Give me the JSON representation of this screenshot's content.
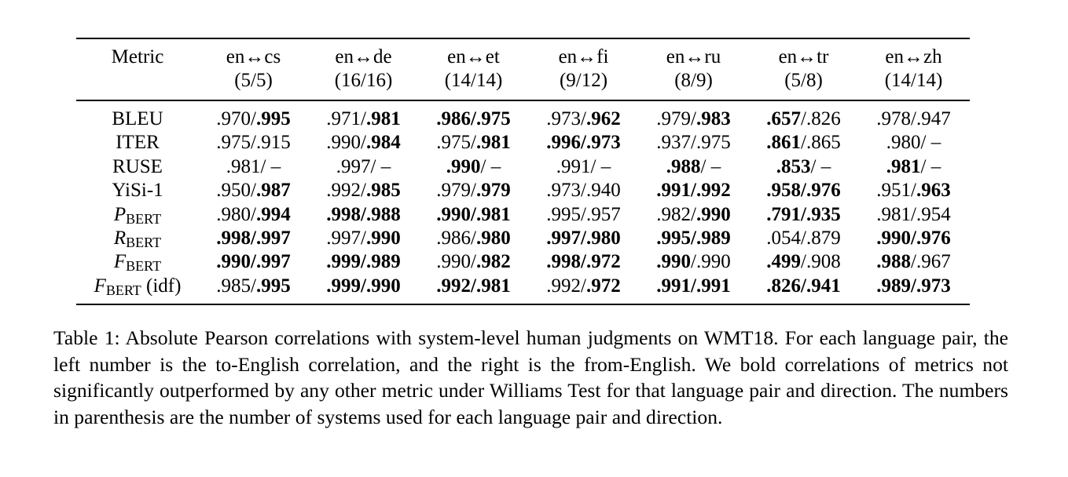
{
  "table": {
    "header": {
      "metric_label": "Metric",
      "pairs": [
        {
          "name": "en↔cs",
          "count": "(5/5)"
        },
        {
          "name": "en↔de",
          "count": "(16/16)"
        },
        {
          "name": "en↔et",
          "count": "(14/14)"
        },
        {
          "name": "en↔fi",
          "count": "(9/12)"
        },
        {
          "name": "en↔ru",
          "count": "(8/9)"
        },
        {
          "name": "en↔tr",
          "count": "(5/8)"
        },
        {
          "name": "en↔zh",
          "count": "(14/14)"
        }
      ]
    },
    "rows": [
      {
        "metric": "BLEU",
        "cells": [
          {
            "left": ".970",
            "right": ".995",
            "left_bold": false,
            "right_bold": true
          },
          {
            "left": ".971",
            "right": ".981",
            "left_bold": false,
            "right_bold": true
          },
          {
            "left": ".986",
            "right": ".975",
            "left_bold": true,
            "right_bold": true
          },
          {
            "left": ".973",
            "right": ".962",
            "left_bold": false,
            "right_bold": true
          },
          {
            "left": ".979",
            "right": ".983",
            "left_bold": false,
            "right_bold": true
          },
          {
            "left": ".657",
            "right": ".826",
            "left_bold": true,
            "right_bold": false
          },
          {
            "left": ".978",
            "right": ".947",
            "left_bold": false,
            "right_bold": false
          }
        ]
      },
      {
        "metric": "ITER",
        "cells": [
          {
            "left": ".975",
            "right": ".915",
            "left_bold": false,
            "right_bold": false
          },
          {
            "left": ".990",
            "right": ".984",
            "left_bold": false,
            "right_bold": true
          },
          {
            "left": ".975",
            "right": ".981",
            "left_bold": false,
            "right_bold": true
          },
          {
            "left": ".996",
            "right": ".973",
            "left_bold": true,
            "right_bold": true
          },
          {
            "left": ".937",
            "right": ".975",
            "left_bold": false,
            "right_bold": false
          },
          {
            "left": ".861",
            "right": ".865",
            "left_bold": true,
            "right_bold": false
          },
          {
            "left": ".980",
            "right": " –",
            "left_bold": false,
            "right_bold": false
          }
        ]
      },
      {
        "metric": "RUSE",
        "cells": [
          {
            "left": ".981",
            "right": " –",
            "left_bold": false,
            "right_bold": false
          },
          {
            "left": ".997",
            "right": " –",
            "left_bold": false,
            "right_bold": false
          },
          {
            "left": ".990",
            "right": " –",
            "left_bold": true,
            "right_bold": false
          },
          {
            "left": ".991",
            "right": " –",
            "left_bold": false,
            "right_bold": false
          },
          {
            "left": ".988",
            "right": " –",
            "left_bold": true,
            "right_bold": false
          },
          {
            "left": ".853",
            "right": " –",
            "left_bold": true,
            "right_bold": false
          },
          {
            "left": ".981",
            "right": " –",
            "left_bold": true,
            "right_bold": false
          }
        ]
      },
      {
        "metric": "YiSi-1",
        "cells": [
          {
            "left": ".950",
            "right": ".987",
            "left_bold": false,
            "right_bold": true
          },
          {
            "left": ".992",
            "right": ".985",
            "left_bold": false,
            "right_bold": true
          },
          {
            "left": ".979",
            "right": ".979",
            "left_bold": false,
            "right_bold": true
          },
          {
            "left": ".973",
            "right": ".940",
            "left_bold": false,
            "right_bold": false
          },
          {
            "left": ".991",
            "right": ".992",
            "left_bold": true,
            "right_bold": true
          },
          {
            "left": ".958",
            "right": ".976",
            "left_bold": true,
            "right_bold": true
          },
          {
            "left": ".951",
            "right": ".963",
            "left_bold": false,
            "right_bold": true
          }
        ]
      },
      {
        "metric_main": "P",
        "metric_sub": "BERT",
        "metric_suffix": "",
        "cells": [
          {
            "left": ".980",
            "right": ".994",
            "left_bold": false,
            "right_bold": true
          },
          {
            "left": ".998",
            "right": ".988",
            "left_bold": true,
            "right_bold": true
          },
          {
            "left": ".990",
            "right": ".981",
            "left_bold": true,
            "right_bold": true
          },
          {
            "left": ".995",
            "right": ".957",
            "left_bold": false,
            "right_bold": false
          },
          {
            "left": ".982",
            "right": ".990",
            "left_bold": false,
            "right_bold": true
          },
          {
            "left": ".791",
            "right": ".935",
            "left_bold": true,
            "right_bold": true
          },
          {
            "left": ".981",
            "right": ".954",
            "left_bold": false,
            "right_bold": false
          }
        ]
      },
      {
        "metric_main": "R",
        "metric_sub": "BERT",
        "metric_suffix": "",
        "cells": [
          {
            "left": ".998",
            "right": ".997",
            "left_bold": true,
            "right_bold": true
          },
          {
            "left": ".997",
            "right": ".990",
            "left_bold": false,
            "right_bold": true
          },
          {
            "left": ".986",
            "right": ".980",
            "left_bold": false,
            "right_bold": true
          },
          {
            "left": ".997",
            "right": ".980",
            "left_bold": true,
            "right_bold": true
          },
          {
            "left": ".995",
            "right": ".989",
            "left_bold": true,
            "right_bold": true
          },
          {
            "left": ".054",
            "right": ".879",
            "left_bold": false,
            "right_bold": false
          },
          {
            "left": ".990",
            "right": ".976",
            "left_bold": true,
            "right_bold": true
          }
        ]
      },
      {
        "metric_main": "F",
        "metric_sub": "BERT",
        "metric_suffix": "",
        "cells": [
          {
            "left": ".990",
            "right": ".997",
            "left_bold": true,
            "right_bold": true
          },
          {
            "left": ".999",
            "right": ".989",
            "left_bold": true,
            "right_bold": true
          },
          {
            "left": ".990",
            "right": ".982",
            "left_bold": false,
            "right_bold": true
          },
          {
            "left": ".998",
            "right": ".972",
            "left_bold": true,
            "right_bold": true
          },
          {
            "left": ".990",
            "right": ".990",
            "left_bold": true,
            "right_bold": false
          },
          {
            "left": ".499",
            "right": ".908",
            "left_bold": true,
            "right_bold": false
          },
          {
            "left": ".988",
            "right": ".967",
            "left_bold": true,
            "right_bold": false
          }
        ]
      },
      {
        "metric_main": "F",
        "metric_sub": "BERT",
        "metric_suffix": " (idf)",
        "cells": [
          {
            "left": ".985",
            "right": ".995",
            "left_bold": false,
            "right_bold": true
          },
          {
            "left": ".999",
            "right": ".990",
            "left_bold": true,
            "right_bold": true
          },
          {
            "left": ".992",
            "right": ".981",
            "left_bold": true,
            "right_bold": true
          },
          {
            "left": ".992",
            "right": ".972",
            "left_bold": false,
            "right_bold": true
          },
          {
            "left": ".991",
            "right": ".991",
            "left_bold": true,
            "right_bold": true
          },
          {
            "left": ".826",
            "right": ".941",
            "left_bold": true,
            "right_bold": true
          },
          {
            "left": ".989",
            "right": ".973",
            "left_bold": true,
            "right_bold": true
          }
        ]
      }
    ]
  },
  "caption": "Table 1: Absolute Pearson correlations with system-level human judgments on WMT18. For each language pair, the left number is the to-English correlation, and the right is the from-English. We bold correlations of metrics not significantly outperformed by any other metric under Williams Test for that language pair and direction. The numbers in parenthesis are the number of systems used for each language pair and direction."
}
